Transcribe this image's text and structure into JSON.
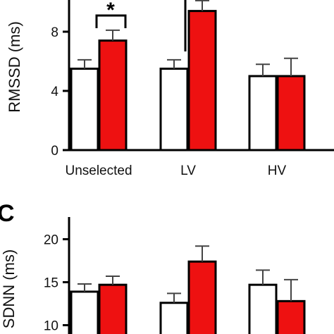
{
  "panel_letter_c": "C",
  "chart_data": [
    {
      "type": "bar",
      "ylabel": "RMSSD (ms)",
      "categories": [
        "Unselected",
        "LV",
        "HV"
      ],
      "yticks": [
        "0",
        "4",
        "8"
      ],
      "ylim": [
        0,
        10
      ],
      "series": [
        {
          "values": [
            5.5,
            5.5,
            5.0
          ],
          "errors": [
            0.6,
            0.6,
            0.8
          ],
          "color": "#ffffff"
        },
        {
          "values": [
            7.4,
            9.4,
            5.0
          ],
          "errors": [
            0.7,
            0.7,
            1.2
          ],
          "color": "#ee1111"
        }
      ],
      "annotations": [
        {
          "text": "*",
          "between": "Unselected"
        }
      ],
      "grid": false
    },
    {
      "type": "bar",
      "ylabel": "SDNN (ms)",
      "categories": [
        "Unselected",
        "LV",
        "HV"
      ],
      "yticks": [
        "10",
        "15",
        "20"
      ],
      "ylim": [
        7.5,
        20
      ],
      "series": [
        {
          "values": [
            13.9,
            12.6,
            14.7
          ],
          "errors": [
            0.9,
            1.1,
            1.7
          ],
          "color": "#ffffff"
        },
        {
          "values": [
            14.7,
            17.4,
            12.8
          ],
          "errors": [
            1.0,
            1.8,
            2.5
          ],
          "color": "#ee1111"
        }
      ],
      "grid": false
    }
  ]
}
